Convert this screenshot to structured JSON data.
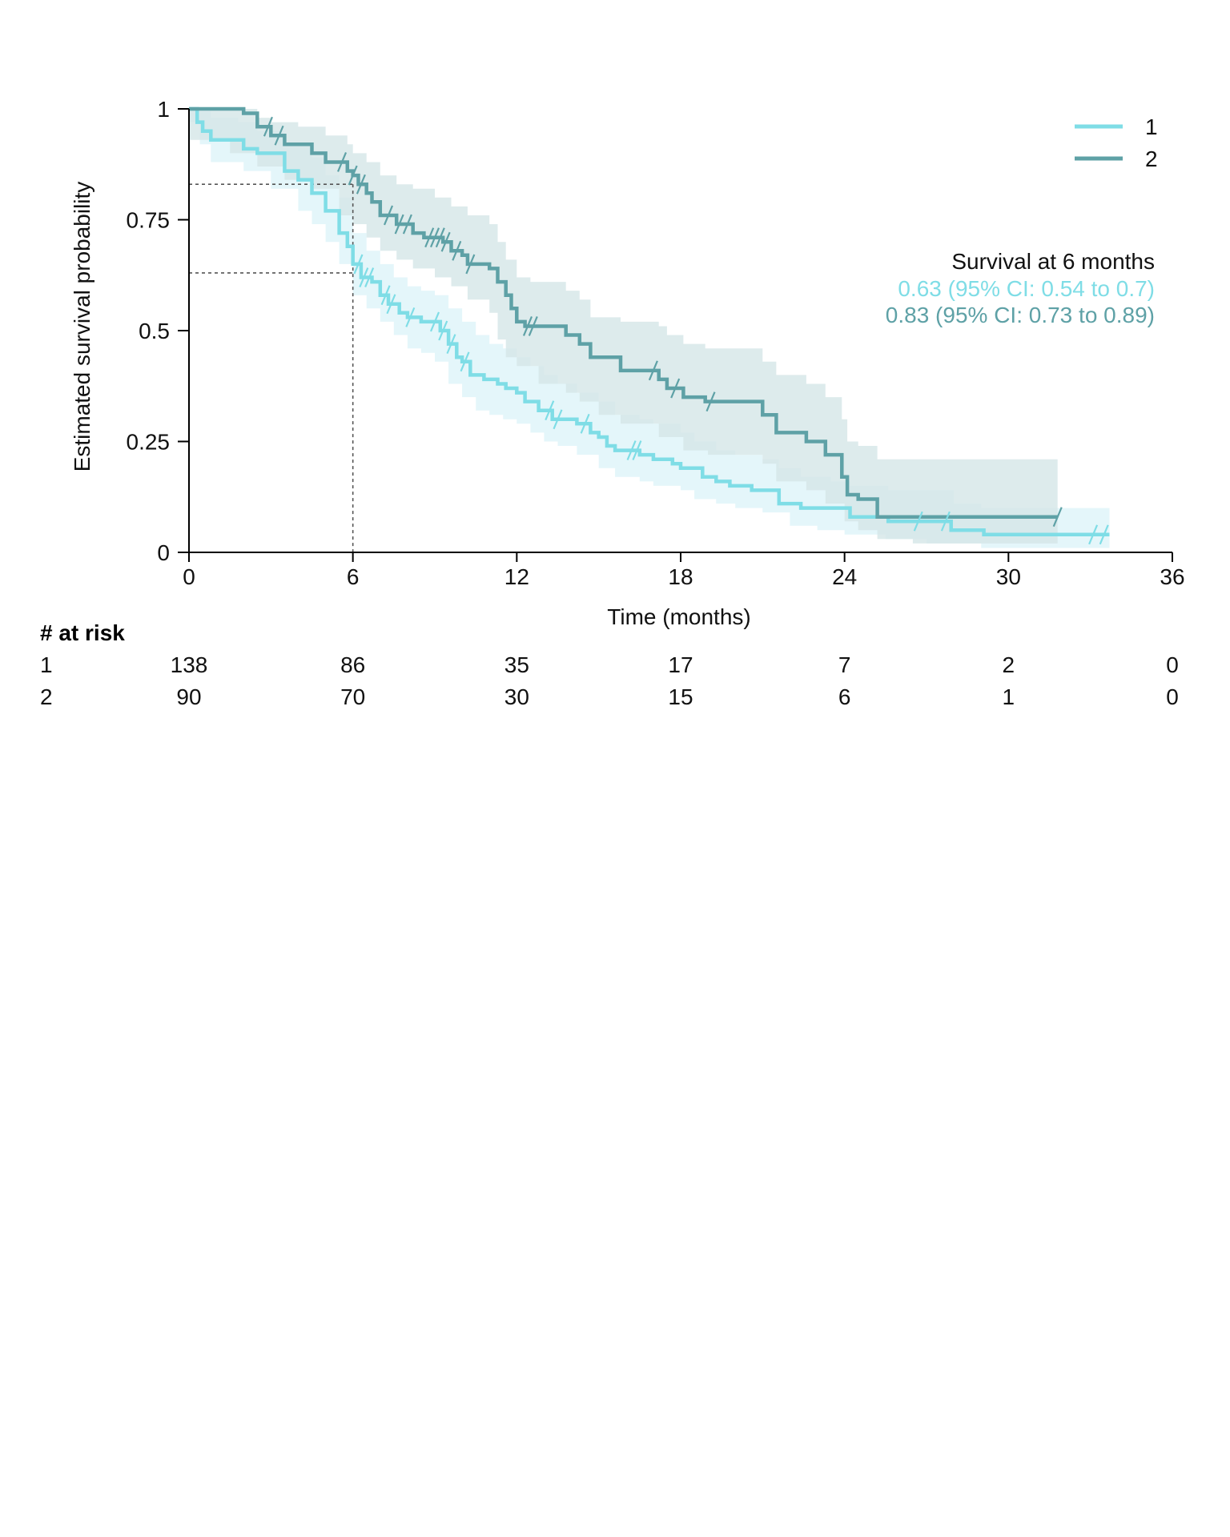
{
  "chart_data": {
    "type": "line",
    "subtype": "kaplan-meier",
    "title": "",
    "xlabel": "Time (months)",
    "ylabel": "Estimated survival probability",
    "xlim": [
      0,
      36
    ],
    "ylim": [
      0,
      1
    ],
    "x_ticks": [
      0,
      6,
      12,
      18,
      24,
      30,
      36
    ],
    "x_tick_labels": [
      "0",
      "6",
      "12",
      "18",
      "24",
      "30",
      "36"
    ],
    "y_ticks": [
      0,
      0.25,
      0.5,
      0.75,
      1
    ],
    "y_tick_labels": [
      "0",
      "0.25",
      "0.5",
      "0.75",
      "1"
    ],
    "grid": false,
    "legend": {
      "position": "top-right",
      "entries": [
        "1",
        "2"
      ]
    },
    "reference": {
      "time": 6,
      "header": "Survival at 6 months",
      "lines": [
        {
          "series": "1",
          "survival": 0.63,
          "text": "0.63 (95% CI: 0.54 to 0.7)"
        },
        {
          "series": "2",
          "survival": 0.83,
          "text": "0.83 (95% CI: 0.73 to 0.89)"
        }
      ]
    },
    "series": [
      {
        "name": "1",
        "color": "#7fdde6",
        "band_color": "#dff5f9",
        "steps": [
          [
            0,
            1
          ],
          [
            0.3,
            0.97
          ],
          [
            0.5,
            0.95
          ],
          [
            0.8,
            0.93
          ],
          [
            1.8,
            0.93
          ],
          [
            2,
            0.91
          ],
          [
            2.5,
            0.9
          ],
          [
            3.5,
            0.86
          ],
          [
            4,
            0.84
          ],
          [
            4.5,
            0.81
          ],
          [
            5,
            0.77
          ],
          [
            5.5,
            0.72
          ],
          [
            5.8,
            0.69
          ],
          [
            6,
            0.65
          ],
          [
            6.3,
            0.62
          ],
          [
            6.7,
            0.61
          ],
          [
            7,
            0.58
          ],
          [
            7.3,
            0.56
          ],
          [
            7.7,
            0.54
          ],
          [
            8,
            0.53
          ],
          [
            8.5,
            0.52
          ],
          [
            9,
            0.52
          ],
          [
            9.2,
            0.5
          ],
          [
            9.5,
            0.47
          ],
          [
            9.8,
            0.44
          ],
          [
            10,
            0.43
          ],
          [
            10.3,
            0.4
          ],
          [
            10.8,
            0.39
          ],
          [
            11.3,
            0.38
          ],
          [
            11.6,
            0.37
          ],
          [
            12,
            0.36
          ],
          [
            12.3,
            0.34
          ],
          [
            12.8,
            0.32
          ],
          [
            13.3,
            0.3
          ],
          [
            14.2,
            0.29
          ],
          [
            14.7,
            0.27
          ],
          [
            15,
            0.26
          ],
          [
            15.3,
            0.24
          ],
          [
            15.6,
            0.23
          ],
          [
            16.5,
            0.22
          ],
          [
            17,
            0.21
          ],
          [
            17.7,
            0.2
          ],
          [
            18,
            0.19
          ],
          [
            18.8,
            0.17
          ],
          [
            19.3,
            0.16
          ],
          [
            19.8,
            0.15
          ],
          [
            20.6,
            0.14
          ],
          [
            21.6,
            0.11
          ],
          [
            22.4,
            0.1
          ],
          [
            24.2,
            0.08
          ],
          [
            25.6,
            0.07
          ],
          [
            27.9,
            0.05
          ],
          [
            29.1,
            0.04
          ],
          [
            33.7,
            0.04
          ]
        ],
        "band_lower": [
          [
            0,
            0.97
          ],
          [
            0.4,
            0.92
          ],
          [
            0.8,
            0.88
          ],
          [
            2,
            0.86
          ],
          [
            3,
            0.82
          ],
          [
            4,
            0.77
          ],
          [
            4.5,
            0.74
          ],
          [
            5,
            0.7
          ],
          [
            5.5,
            0.65
          ],
          [
            6,
            0.58
          ],
          [
            6.5,
            0.55
          ],
          [
            7,
            0.52
          ],
          [
            7.5,
            0.49
          ],
          [
            8,
            0.46
          ],
          [
            8.5,
            0.45
          ],
          [
            9,
            0.43
          ],
          [
            9.5,
            0.38
          ],
          [
            10,
            0.35
          ],
          [
            10.5,
            0.32
          ],
          [
            11,
            0.31
          ],
          [
            11.5,
            0.3
          ],
          [
            12,
            0.29
          ],
          [
            12.5,
            0.27
          ],
          [
            13,
            0.25
          ],
          [
            13.5,
            0.24
          ],
          [
            14.2,
            0.22
          ],
          [
            15,
            0.19
          ],
          [
            15.6,
            0.17
          ],
          [
            16.5,
            0.16
          ],
          [
            17,
            0.15
          ],
          [
            18,
            0.14
          ],
          [
            18.5,
            0.12
          ],
          [
            19.3,
            0.11
          ],
          [
            20,
            0.1
          ],
          [
            21,
            0.09
          ],
          [
            22,
            0.06
          ],
          [
            23,
            0.05
          ],
          [
            24,
            0.04
          ],
          [
            25.5,
            0.03
          ],
          [
            27,
            0.02
          ],
          [
            29,
            0.01
          ],
          [
            33.7,
            0.01
          ]
        ],
        "band_upper": [
          [
            0,
            1
          ],
          [
            0.8,
            0.98
          ],
          [
            1.8,
            0.97
          ],
          [
            2.5,
            0.95
          ],
          [
            3.5,
            0.92
          ],
          [
            4.5,
            0.89
          ],
          [
            5,
            0.85
          ],
          [
            5.5,
            0.8
          ],
          [
            6,
            0.72
          ],
          [
            6.5,
            0.68
          ],
          [
            7,
            0.65
          ],
          [
            7.5,
            0.62
          ],
          [
            8,
            0.6
          ],
          [
            8.5,
            0.59
          ],
          [
            9,
            0.58
          ],
          [
            9.5,
            0.55
          ],
          [
            10,
            0.52
          ],
          [
            10.5,
            0.49
          ],
          [
            11,
            0.47
          ],
          [
            11.5,
            0.46
          ],
          [
            12,
            0.44
          ],
          [
            12.5,
            0.42
          ],
          [
            13,
            0.4
          ],
          [
            13.5,
            0.38
          ],
          [
            14.2,
            0.36
          ],
          [
            15,
            0.34
          ],
          [
            15.6,
            0.31
          ],
          [
            16.5,
            0.3
          ],
          [
            17,
            0.29
          ],
          [
            18,
            0.27
          ],
          [
            18.5,
            0.25
          ],
          [
            19.3,
            0.23
          ],
          [
            20,
            0.22
          ],
          [
            21,
            0.21
          ],
          [
            21.6,
            0.19
          ],
          [
            22.4,
            0.17
          ],
          [
            23.5,
            0.16
          ],
          [
            24.2,
            0.15
          ],
          [
            25.6,
            0.14
          ],
          [
            28,
            0.11
          ],
          [
            29,
            0.1
          ],
          [
            33.7,
            0.1
          ]
        ],
        "censored": [
          6.2,
          6.4,
          6.6,
          7.2,
          7.4,
          8.1,
          9.0,
          9.3,
          9.6,
          10.1,
          13.2,
          13.5,
          14.5,
          16.2,
          16.4,
          26.7,
          27.7,
          33.1,
          33.5
        ],
        "at_risk": [
          138,
          86,
          35,
          17,
          7,
          2,
          0
        ]
      },
      {
        "name": "2",
        "color": "#5ea1a6",
        "band_color": "#d5e6e7",
        "steps": [
          [
            0,
            1
          ],
          [
            2,
            0.99
          ],
          [
            2.5,
            0.96
          ],
          [
            3,
            0.94
          ],
          [
            3.5,
            0.92
          ],
          [
            4.5,
            0.9
          ],
          [
            5,
            0.88
          ],
          [
            5.8,
            0.86
          ],
          [
            6,
            0.85
          ],
          [
            6.2,
            0.83
          ],
          [
            6.5,
            0.81
          ],
          [
            6.7,
            0.79
          ],
          [
            7,
            0.76
          ],
          [
            7.6,
            0.74
          ],
          [
            8.2,
            0.72
          ],
          [
            8.6,
            0.71
          ],
          [
            9,
            0.71
          ],
          [
            9.3,
            0.7
          ],
          [
            9.6,
            0.68
          ],
          [
            10,
            0.67
          ],
          [
            10.2,
            0.65
          ],
          [
            11,
            0.64
          ],
          [
            11.3,
            0.61
          ],
          [
            11.6,
            0.58
          ],
          [
            11.8,
            0.55
          ],
          [
            12,
            0.52
          ],
          [
            12.3,
            0.51
          ],
          [
            13.8,
            0.49
          ],
          [
            14.3,
            0.47
          ],
          [
            14.7,
            0.44
          ],
          [
            15.8,
            0.41
          ],
          [
            17.2,
            0.39
          ],
          [
            17.5,
            0.37
          ],
          [
            18.1,
            0.35
          ],
          [
            18.9,
            0.34
          ],
          [
            21,
            0.31
          ],
          [
            21.5,
            0.27
          ],
          [
            22.6,
            0.25
          ],
          [
            23.3,
            0.22
          ],
          [
            23.9,
            0.17
          ],
          [
            24.1,
            0.13
          ],
          [
            24.5,
            0.12
          ],
          [
            25.2,
            0.08
          ],
          [
            31.8,
            0.08
          ]
        ],
        "band_lower": [
          [
            0,
            0.93
          ],
          [
            1.5,
            0.9
          ],
          [
            2.5,
            0.87
          ],
          [
            3.5,
            0.84
          ],
          [
            4.5,
            0.82
          ],
          [
            5.5,
            0.76
          ],
          [
            6,
            0.74
          ],
          [
            6.5,
            0.71
          ],
          [
            7,
            0.68
          ],
          [
            7.6,
            0.66
          ],
          [
            8.2,
            0.64
          ],
          [
            9,
            0.62
          ],
          [
            9.6,
            0.6
          ],
          [
            10.2,
            0.57
          ],
          [
            11,
            0.54
          ],
          [
            11.3,
            0.48
          ],
          [
            11.6,
            0.44
          ],
          [
            12,
            0.42
          ],
          [
            12.8,
            0.38
          ],
          [
            13.8,
            0.36
          ],
          [
            14.3,
            0.34
          ],
          [
            15,
            0.31
          ],
          [
            15.8,
            0.29
          ],
          [
            17.2,
            0.26
          ],
          [
            18.1,
            0.23
          ],
          [
            19,
            0.22
          ],
          [
            21,
            0.2
          ],
          [
            21.5,
            0.16
          ],
          [
            22.6,
            0.14
          ],
          [
            23.3,
            0.11
          ],
          [
            24,
            0.07
          ],
          [
            24.5,
            0.05
          ],
          [
            25.2,
            0.03
          ],
          [
            26.5,
            0.02
          ],
          [
            31.8,
            0.02
          ]
        ],
        "band_upper": [
          [
            0,
            1
          ],
          [
            2,
            1
          ],
          [
            2.5,
            0.98
          ],
          [
            3,
            0.97
          ],
          [
            4,
            0.96
          ],
          [
            5,
            0.94
          ],
          [
            5.8,
            0.92
          ],
          [
            6,
            0.9
          ],
          [
            6.5,
            0.88
          ],
          [
            7,
            0.85
          ],
          [
            7.6,
            0.83
          ],
          [
            8.2,
            0.82
          ],
          [
            9,
            0.8
          ],
          [
            9.6,
            0.78
          ],
          [
            10.2,
            0.76
          ],
          [
            11,
            0.74
          ],
          [
            11.3,
            0.7
          ],
          [
            11.6,
            0.66
          ],
          [
            12,
            0.62
          ],
          [
            12.5,
            0.61
          ],
          [
            13.8,
            0.59
          ],
          [
            14.3,
            0.57
          ],
          [
            14.7,
            0.53
          ],
          [
            15.8,
            0.52
          ],
          [
            17.2,
            0.51
          ],
          [
            17.5,
            0.49
          ],
          [
            18.1,
            0.47
          ],
          [
            18.9,
            0.46
          ],
          [
            21,
            0.43
          ],
          [
            21.5,
            0.4
          ],
          [
            22.6,
            0.38
          ],
          [
            23.3,
            0.35
          ],
          [
            23.9,
            0.3
          ],
          [
            24.1,
            0.25
          ],
          [
            24.5,
            0.24
          ],
          [
            25.2,
            0.21
          ],
          [
            31.8,
            0.21
          ]
        ],
        "censored": [
          2.9,
          3.3,
          5.6,
          6.0,
          6.3,
          7.3,
          7.7,
          8.0,
          8.8,
          9.0,
          9.2,
          9.4,
          9.8,
          10.3,
          12.4,
          12.6,
          17.0,
          17.8,
          19.1,
          31.8
        ],
        "at_risk": [
          90,
          70,
          30,
          15,
          6,
          1,
          0
        ]
      }
    ],
    "risk_table": {
      "title": "# at risk",
      "times": [
        0,
        6,
        12,
        18,
        24,
        30,
        36
      ],
      "rows": [
        {
          "label": "1",
          "values": [
            "138",
            "86",
            "35",
            "17",
            "7",
            "2",
            "0"
          ]
        },
        {
          "label": "2",
          "values": [
            "90",
            "70",
            "30",
            "15",
            "6",
            "1",
            "0"
          ]
        }
      ]
    }
  }
}
